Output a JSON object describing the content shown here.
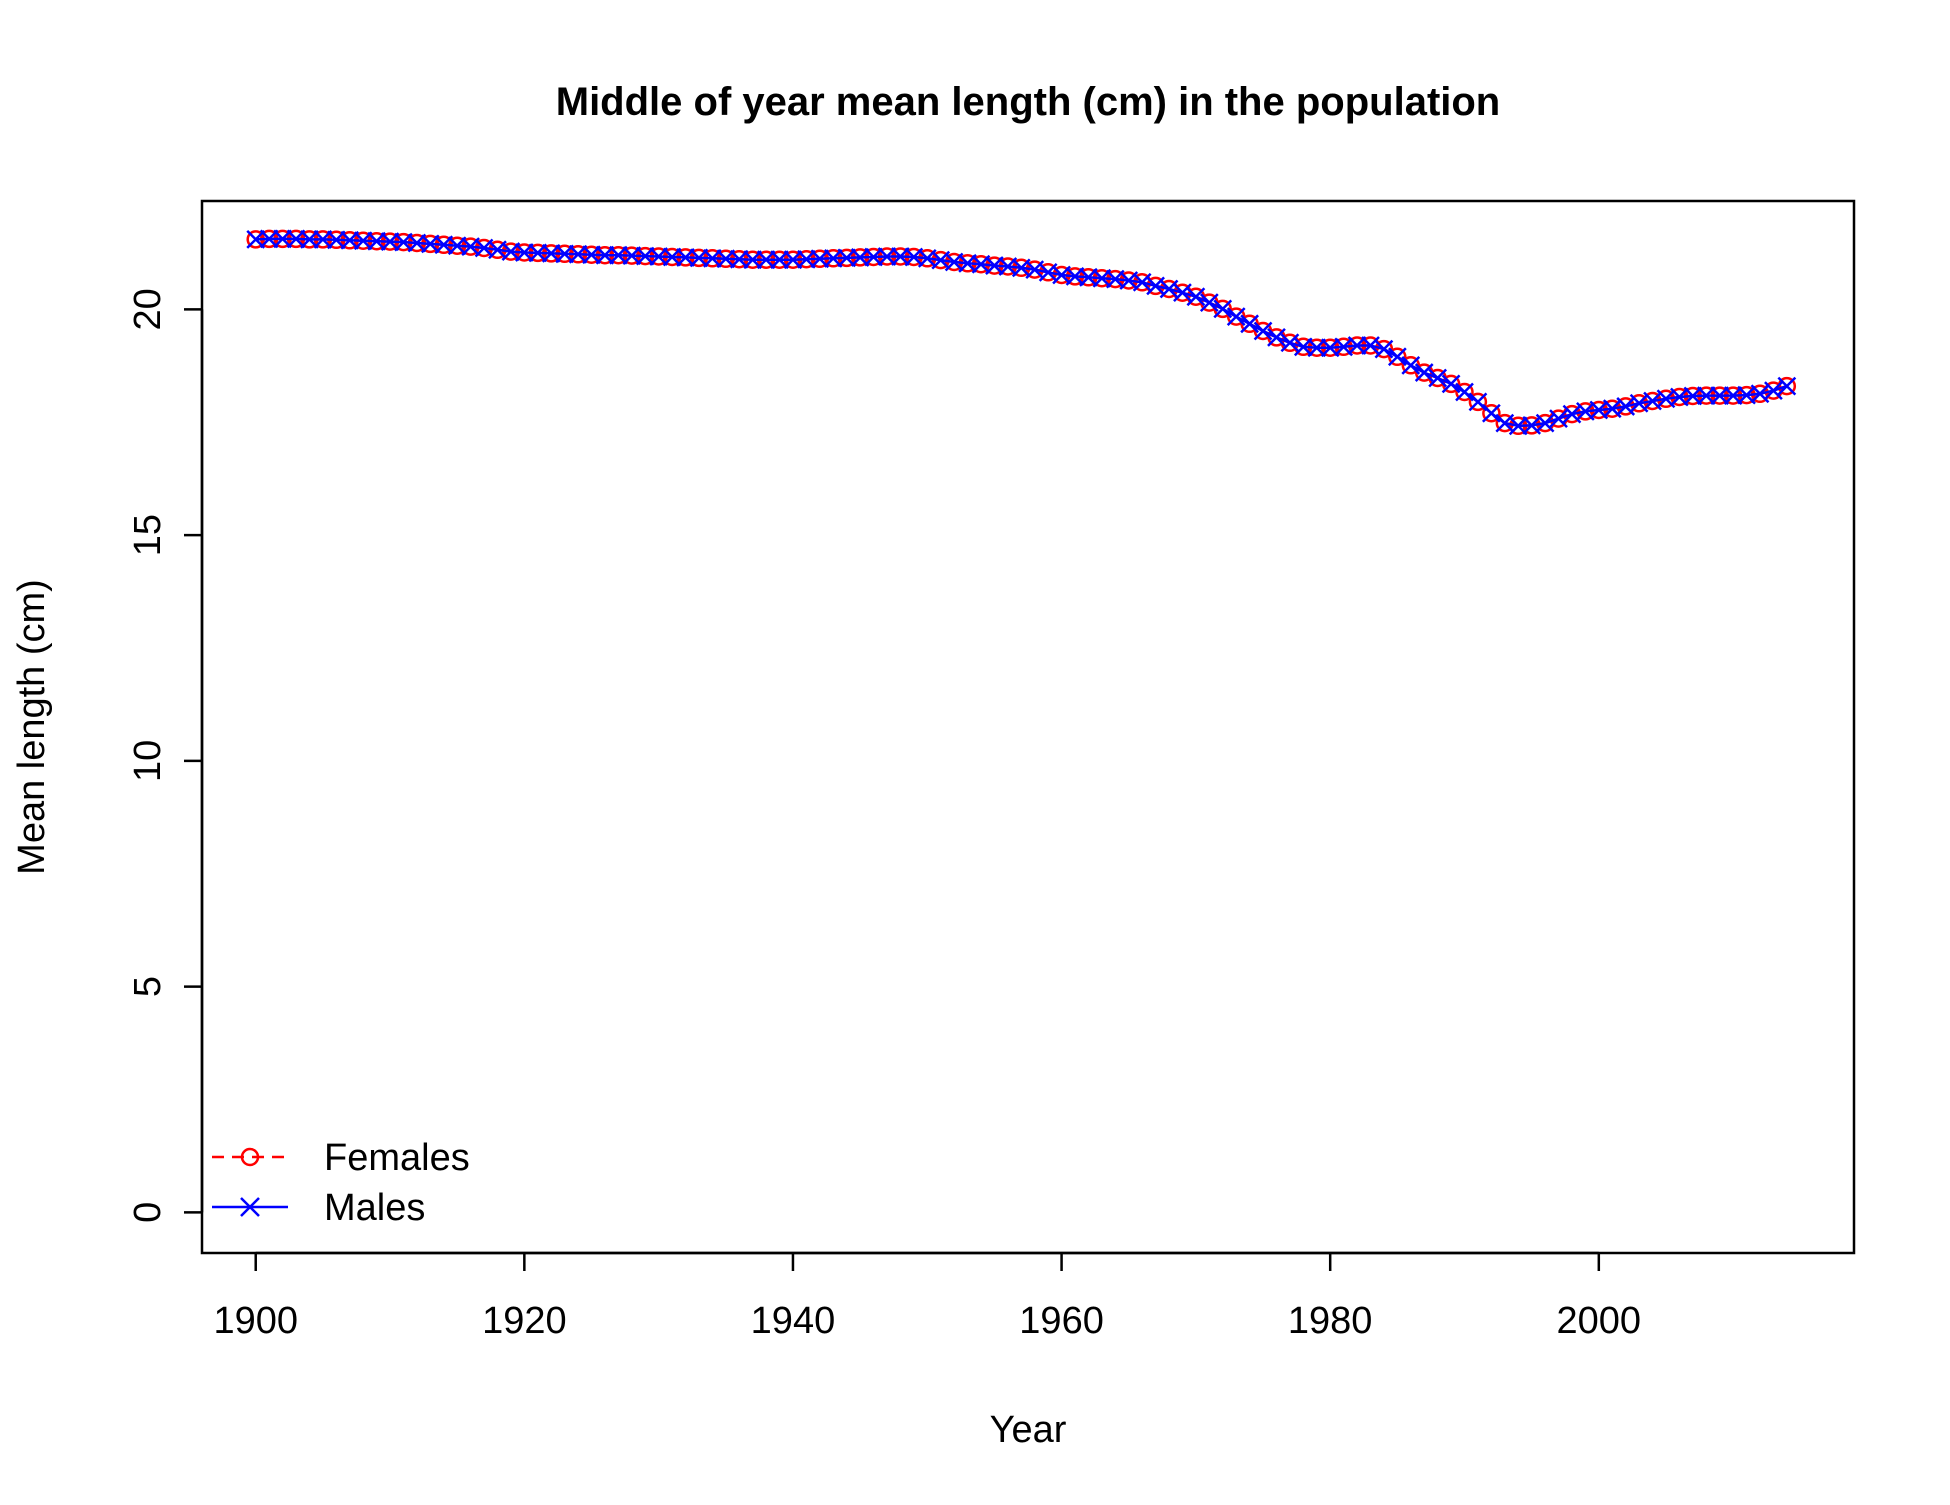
{
  "chart_data": {
    "type": "line",
    "title": "Middle of year mean length (cm) in the population",
    "xlabel": "Year",
    "ylabel": "Mean length (cm)",
    "xlim": [
      1896,
      2019
    ],
    "ylim": [
      -0.9,
      22.4
    ],
    "x_ticks": [
      1900,
      1920,
      1940,
      1960,
      1980,
      2000
    ],
    "y_ticks": [
      0,
      5,
      10,
      15,
      20
    ],
    "grid": false,
    "legend_position": "bottom-left",
    "x_start": 1900,
    "x_end": 2014,
    "series": [
      {
        "name": "Females",
        "color": "#ff0000",
        "line_style": "dashed",
        "marker": "circle-open",
        "values": [
          21.55,
          21.56,
          21.56,
          21.56,
          21.55,
          21.55,
          21.54,
          21.53,
          21.52,
          21.51,
          21.5,
          21.49,
          21.47,
          21.45,
          21.43,
          21.41,
          21.39,
          21.36,
          21.32,
          21.28,
          21.26,
          21.25,
          21.24,
          21.23,
          21.22,
          21.21,
          21.2,
          21.2,
          21.19,
          21.18,
          21.17,
          21.16,
          21.15,
          21.14,
          21.13,
          21.12,
          21.11,
          21.1,
          21.1,
          21.1,
          21.1,
          21.11,
          21.12,
          21.13,
          21.14,
          21.15,
          21.16,
          21.17,
          21.17,
          21.16,
          21.13,
          21.09,
          21.05,
          21.02,
          21.0,
          20.97,
          20.95,
          20.92,
          20.88,
          20.82,
          20.76,
          20.73,
          20.71,
          20.69,
          20.67,
          20.64,
          20.6,
          20.52,
          20.45,
          20.37,
          20.28,
          20.15,
          20.01,
          19.84,
          19.68,
          19.52,
          19.38,
          19.26,
          19.17,
          19.15,
          19.15,
          19.17,
          19.2,
          19.2,
          19.12,
          18.95,
          18.76,
          18.6,
          18.48,
          18.35,
          18.17,
          17.95,
          17.7,
          17.48,
          17.42,
          17.43,
          17.48,
          17.58,
          17.68,
          17.74,
          17.77,
          17.8,
          17.85,
          17.92,
          17.97,
          18.02,
          18.06,
          18.08,
          18.09,
          18.09,
          18.09,
          18.1,
          18.13,
          18.2,
          18.3
        ]
      },
      {
        "name": "Males",
        "color": "#0000ff",
        "line_style": "solid",
        "marker": "x",
        "values": [
          21.55,
          21.56,
          21.56,
          21.56,
          21.55,
          21.55,
          21.54,
          21.53,
          21.52,
          21.51,
          21.5,
          21.49,
          21.47,
          21.45,
          21.43,
          21.41,
          21.39,
          21.36,
          21.32,
          21.28,
          21.26,
          21.25,
          21.24,
          21.23,
          21.22,
          21.21,
          21.2,
          21.2,
          21.19,
          21.18,
          21.17,
          21.16,
          21.15,
          21.14,
          21.13,
          21.12,
          21.11,
          21.1,
          21.1,
          21.1,
          21.1,
          21.11,
          21.12,
          21.13,
          21.14,
          21.15,
          21.16,
          21.17,
          21.17,
          21.16,
          21.13,
          21.09,
          21.05,
          21.02,
          21.0,
          20.97,
          20.95,
          20.92,
          20.88,
          20.82,
          20.76,
          20.73,
          20.71,
          20.69,
          20.67,
          20.64,
          20.6,
          20.52,
          20.45,
          20.37,
          20.28,
          20.15,
          20.01,
          19.84,
          19.68,
          19.52,
          19.38,
          19.26,
          19.17,
          19.15,
          19.15,
          19.17,
          19.2,
          19.2,
          19.12,
          18.95,
          18.76,
          18.6,
          18.48,
          18.35,
          18.17,
          17.95,
          17.7,
          17.48,
          17.42,
          17.43,
          17.48,
          17.58,
          17.68,
          17.74,
          17.77,
          17.8,
          17.85,
          17.92,
          17.97,
          18.02,
          18.06,
          18.08,
          18.09,
          18.09,
          18.09,
          18.1,
          18.13,
          18.2,
          18.3
        ]
      }
    ]
  }
}
